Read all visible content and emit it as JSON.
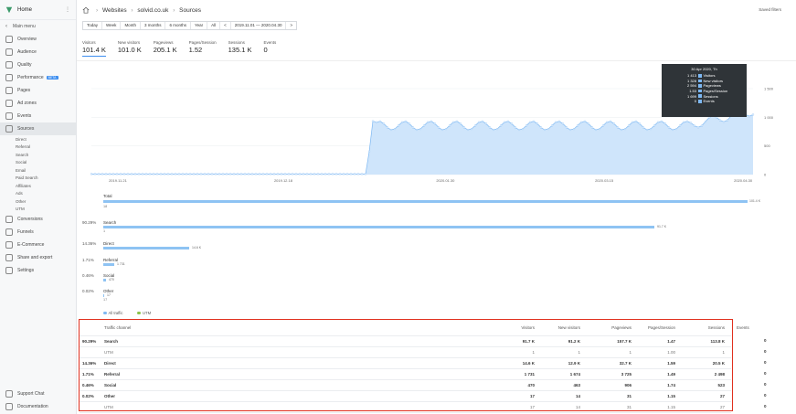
{
  "sidebar": {
    "app_title": "Home",
    "main_menu": "Main menu",
    "items": [
      {
        "label": "Overview"
      },
      {
        "label": "Audience"
      },
      {
        "label": "Quality"
      },
      {
        "label": "Performance",
        "badge": "BETA"
      },
      {
        "label": "Pages"
      },
      {
        "label": "Ad zones"
      },
      {
        "label": "Events"
      },
      {
        "label": "Sources"
      }
    ],
    "sub_items": [
      "Direct",
      "Referral",
      "Search",
      "Social",
      "Email",
      "Paid Search",
      "Affiliates",
      "Ads",
      "Other",
      "UTM"
    ],
    "items2": [
      {
        "label": "Conversions"
      },
      {
        "label": "Funnels"
      },
      {
        "label": "E-Commerce"
      },
      {
        "label": "Share and export"
      },
      {
        "label": "Settings"
      }
    ],
    "bottom": [
      {
        "label": "Support Chat"
      },
      {
        "label": "Documentation"
      }
    ]
  },
  "header": {
    "crumbs": [
      "Websites",
      "solvid.co.uk",
      "Sources"
    ],
    "saved_filters": "Saved filters"
  },
  "periods": [
    "Today",
    "Week",
    "Month",
    "3 months",
    "6 months",
    "Year",
    "All",
    "<",
    "2019.11.01 — 2020.04.30",
    ">"
  ],
  "metrics": [
    {
      "label": "Visitors",
      "value": "101.4 K"
    },
    {
      "label": "New visitors",
      "value": "101.0 K"
    },
    {
      "label": "Pageviews",
      "value": "205.1 K"
    },
    {
      "label": "Pages/Session",
      "value": "1.52"
    },
    {
      "label": "Sessions",
      "value": "135.1 K"
    },
    {
      "label": "Events",
      "value": "0"
    }
  ],
  "chart_data": {
    "type": "area",
    "x_ticks": [
      "2019.11.21",
      "2019.12.18",
      "2020.01.30",
      "2020.03.15",
      "2020.04.30"
    ],
    "y_ticks": [
      "1 500",
      "1 000",
      "500",
      "0"
    ],
    "ylim": [
      0,
      1500
    ],
    "color": "#7db8f3"
  },
  "tooltip": {
    "title": "30 Apr 2020, Th",
    "rows": [
      {
        "value": "1 413",
        "label": "Visitors"
      },
      {
        "value": "1 328",
        "label": "New visitors"
      },
      {
        "value": "2 594",
        "label": "Pageviews"
      },
      {
        "value": "1.53",
        "label": "Pages/Session"
      },
      {
        "value": "1 699",
        "label": "Sessions"
      },
      {
        "value": "0",
        "label": "Events"
      }
    ]
  },
  "breakdown": {
    "total_label": "Total",
    "total_value": "101.4 K",
    "total_sub": "18",
    "rows": [
      {
        "pct": "90.29%",
        "name": "Search",
        "value": "91.7 K",
        "sub": "1"
      },
      {
        "pct": "14.36%",
        "name": "Direct",
        "value": "14.6 K",
        "sub": ""
      },
      {
        "pct": "1.71%",
        "name": "Referral",
        "value": "1 731",
        "sub": ""
      },
      {
        "pct": "0.46%",
        "name": "Social",
        "value": "470",
        "sub": ""
      },
      {
        "pct": "0.02%",
        "name": "Other",
        "value": "17",
        "sub": "17"
      }
    ],
    "legend": [
      "All traffic",
      "UTM"
    ]
  },
  "table": {
    "headers": [
      "Traffic channel",
      "Visitors",
      "New visitors",
      "Pageviews",
      "Pages/Session",
      "Sessions",
      "Events"
    ],
    "rows": [
      {
        "pct": "90.29%",
        "name": "Search",
        "bold": true,
        "cells": [
          "91.7 K",
          "91.2 K",
          "157.7 K",
          "1.47",
          "113.8 K",
          "0"
        ]
      },
      {
        "pct": "",
        "name": "UTM",
        "bold": false,
        "cells": [
          "1",
          "1",
          "1",
          "1.00",
          "1",
          "0"
        ]
      },
      {
        "pct": "14.36%",
        "name": "Direct",
        "bold": true,
        "cells": [
          "14.6 K",
          "12.9 K",
          "32.7 K",
          "1.59",
          "20.5 K",
          "0"
        ]
      },
      {
        "pct": "1.71%",
        "name": "Referral",
        "bold": true,
        "cells": [
          "1 731",
          "1 674",
          "3 725",
          "1.49",
          "2 498",
          "0"
        ]
      },
      {
        "pct": "0.46%",
        "name": "Social",
        "bold": true,
        "cells": [
          "470",
          "463",
          "906",
          "1.74",
          "523",
          "0"
        ]
      },
      {
        "pct": "0.02%",
        "name": "Other",
        "bold": true,
        "cells": [
          "17",
          "14",
          "31",
          "1.15",
          "27",
          "0"
        ]
      },
      {
        "pct": "",
        "name": "UTM",
        "bold": false,
        "cells": [
          "17",
          "14",
          "31",
          "1.15",
          "27",
          "0"
        ]
      }
    ]
  }
}
